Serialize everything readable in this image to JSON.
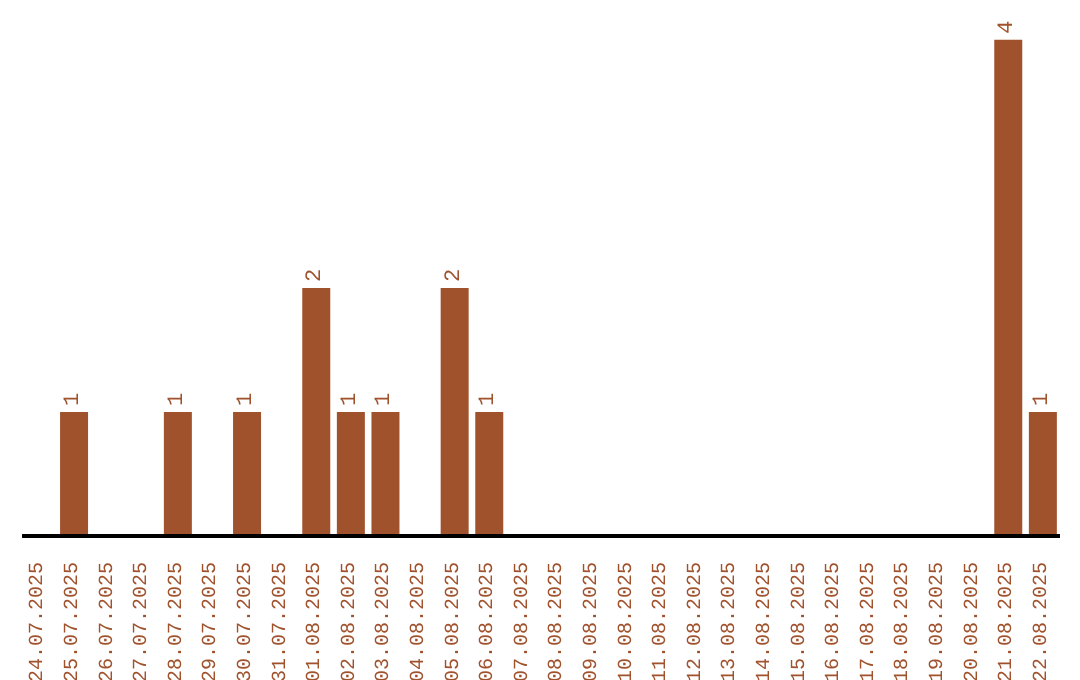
{
  "chart_data": {
    "type": "bar",
    "categories": [
      "24.07.2025",
      "25.07.2025",
      "26.07.2025",
      "27.07.2025",
      "28.07.2025",
      "29.07.2025",
      "30.07.2025",
      "31.07.2025",
      "01.08.2025",
      "02.08.2025",
      "03.08.2025",
      "04.08.2025",
      "05.08.2025",
      "06.08.2025",
      "07.08.2025",
      "08.08.2025",
      "09.08.2025",
      "10.08.2025",
      "11.08.2025",
      "12.08.2025",
      "13.08.2025",
      "14.08.2025",
      "15.08.2025",
      "16.08.2025",
      "17.08.2025",
      "18.08.2025",
      "19.08.2025",
      "20.08.2025",
      "21.08.2025",
      "22.08.2025"
    ],
    "values": [
      0,
      1,
      0,
      0,
      1,
      0,
      1,
      0,
      2,
      1,
      1,
      0,
      2,
      1,
      0,
      0,
      0,
      0,
      0,
      0,
      0,
      0,
      0,
      0,
      0,
      0,
      0,
      0,
      4,
      1
    ],
    "value_labels": [
      null,
      "1",
      null,
      null,
      "1",
      null,
      "1",
      null,
      "2",
      "1",
      "1",
      null,
      "2",
      "1",
      null,
      null,
      null,
      null,
      null,
      null,
      null,
      null,
      null,
      null,
      null,
      null,
      null,
      null,
      "4",
      "1"
    ],
    "color": "#a0522d",
    "grid": false,
    "legend": false
  }
}
